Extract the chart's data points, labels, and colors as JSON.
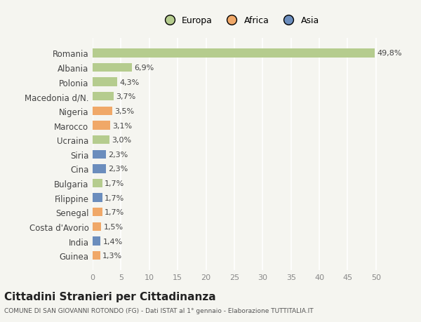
{
  "categories": [
    "Romania",
    "Albania",
    "Polonia",
    "Macedonia d/N.",
    "Nigeria",
    "Marocco",
    "Ucraina",
    "Siria",
    "Cina",
    "Bulgaria",
    "Filippine",
    "Senegal",
    "Costa d'Avorio",
    "India",
    "Guinea"
  ],
  "values": [
    49.8,
    6.9,
    4.3,
    3.7,
    3.5,
    3.1,
    3.0,
    2.3,
    2.3,
    1.7,
    1.7,
    1.7,
    1.5,
    1.4,
    1.3
  ],
  "labels": [
    "49,8%",
    "6,9%",
    "4,3%",
    "3,7%",
    "3,5%",
    "3,1%",
    "3,0%",
    "2,3%",
    "2,3%",
    "1,7%",
    "1,7%",
    "1,7%",
    "1,5%",
    "1,4%",
    "1,3%"
  ],
  "continents": [
    "Europa",
    "Europa",
    "Europa",
    "Europa",
    "Africa",
    "Africa",
    "Europa",
    "Asia",
    "Asia",
    "Europa",
    "Asia",
    "Africa",
    "Africa",
    "Asia",
    "Africa"
  ],
  "colors": {
    "Europa": "#b5cc8e",
    "Africa": "#f0a868",
    "Asia": "#6b8dbd"
  },
  "legend_order": [
    "Europa",
    "Africa",
    "Asia"
  ],
  "title": "Cittadini Stranieri per Cittadinanza",
  "subtitle": "COMUNE DI SAN GIOVANNI ROTONDO (FG) - Dati ISTAT al 1° gennaio - Elaborazione TUTTITALIA.IT",
  "xlim": [
    0,
    52
  ],
  "xticks": [
    0,
    5,
    10,
    15,
    20,
    25,
    30,
    35,
    40,
    45,
    50
  ],
  "background_color": "#f5f5f0",
  "grid_color": "#ffffff",
  "bar_height": 0.6
}
